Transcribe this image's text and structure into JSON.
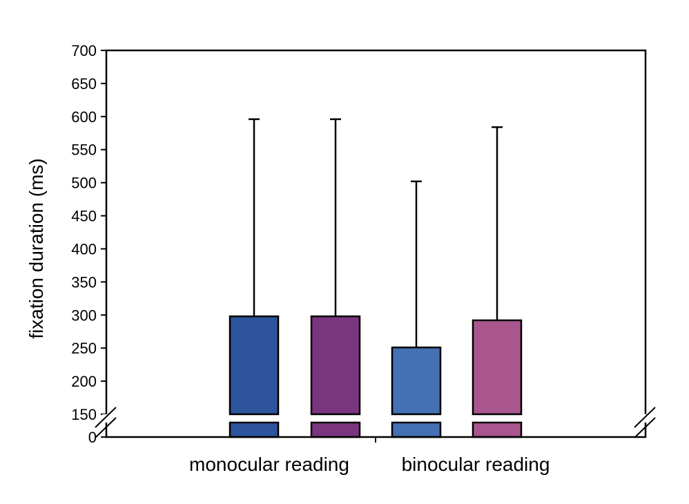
{
  "chart_data": {
    "type": "bar",
    "ylabel": "fixation duration (ms)",
    "xlabel": "",
    "categories": [
      "monocular reading",
      "binocular reading"
    ],
    "yticks": [
      "0",
      "150",
      "200",
      "250",
      "300",
      "350",
      "400",
      "450",
      "500",
      "550",
      "600",
      "650",
      "700"
    ],
    "axis_break": [
      0,
      150
    ],
    "ylim": [
      0,
      700
    ],
    "bars": [
      {
        "category": "monocular reading",
        "value": 298,
        "whisker_top": 596,
        "color": "#2d549c"
      },
      {
        "category": "monocular reading",
        "value": 298,
        "whisker_top": 596,
        "color": "#7b357f"
      },
      {
        "category": "binocular reading",
        "value": 251,
        "whisker_top": 502,
        "color": "#4470b4"
      },
      {
        "category": "binocular reading",
        "value": 292,
        "whisker_top": 584,
        "color": "#a9568f"
      }
    ],
    "grid": false,
    "legend": "none"
  }
}
